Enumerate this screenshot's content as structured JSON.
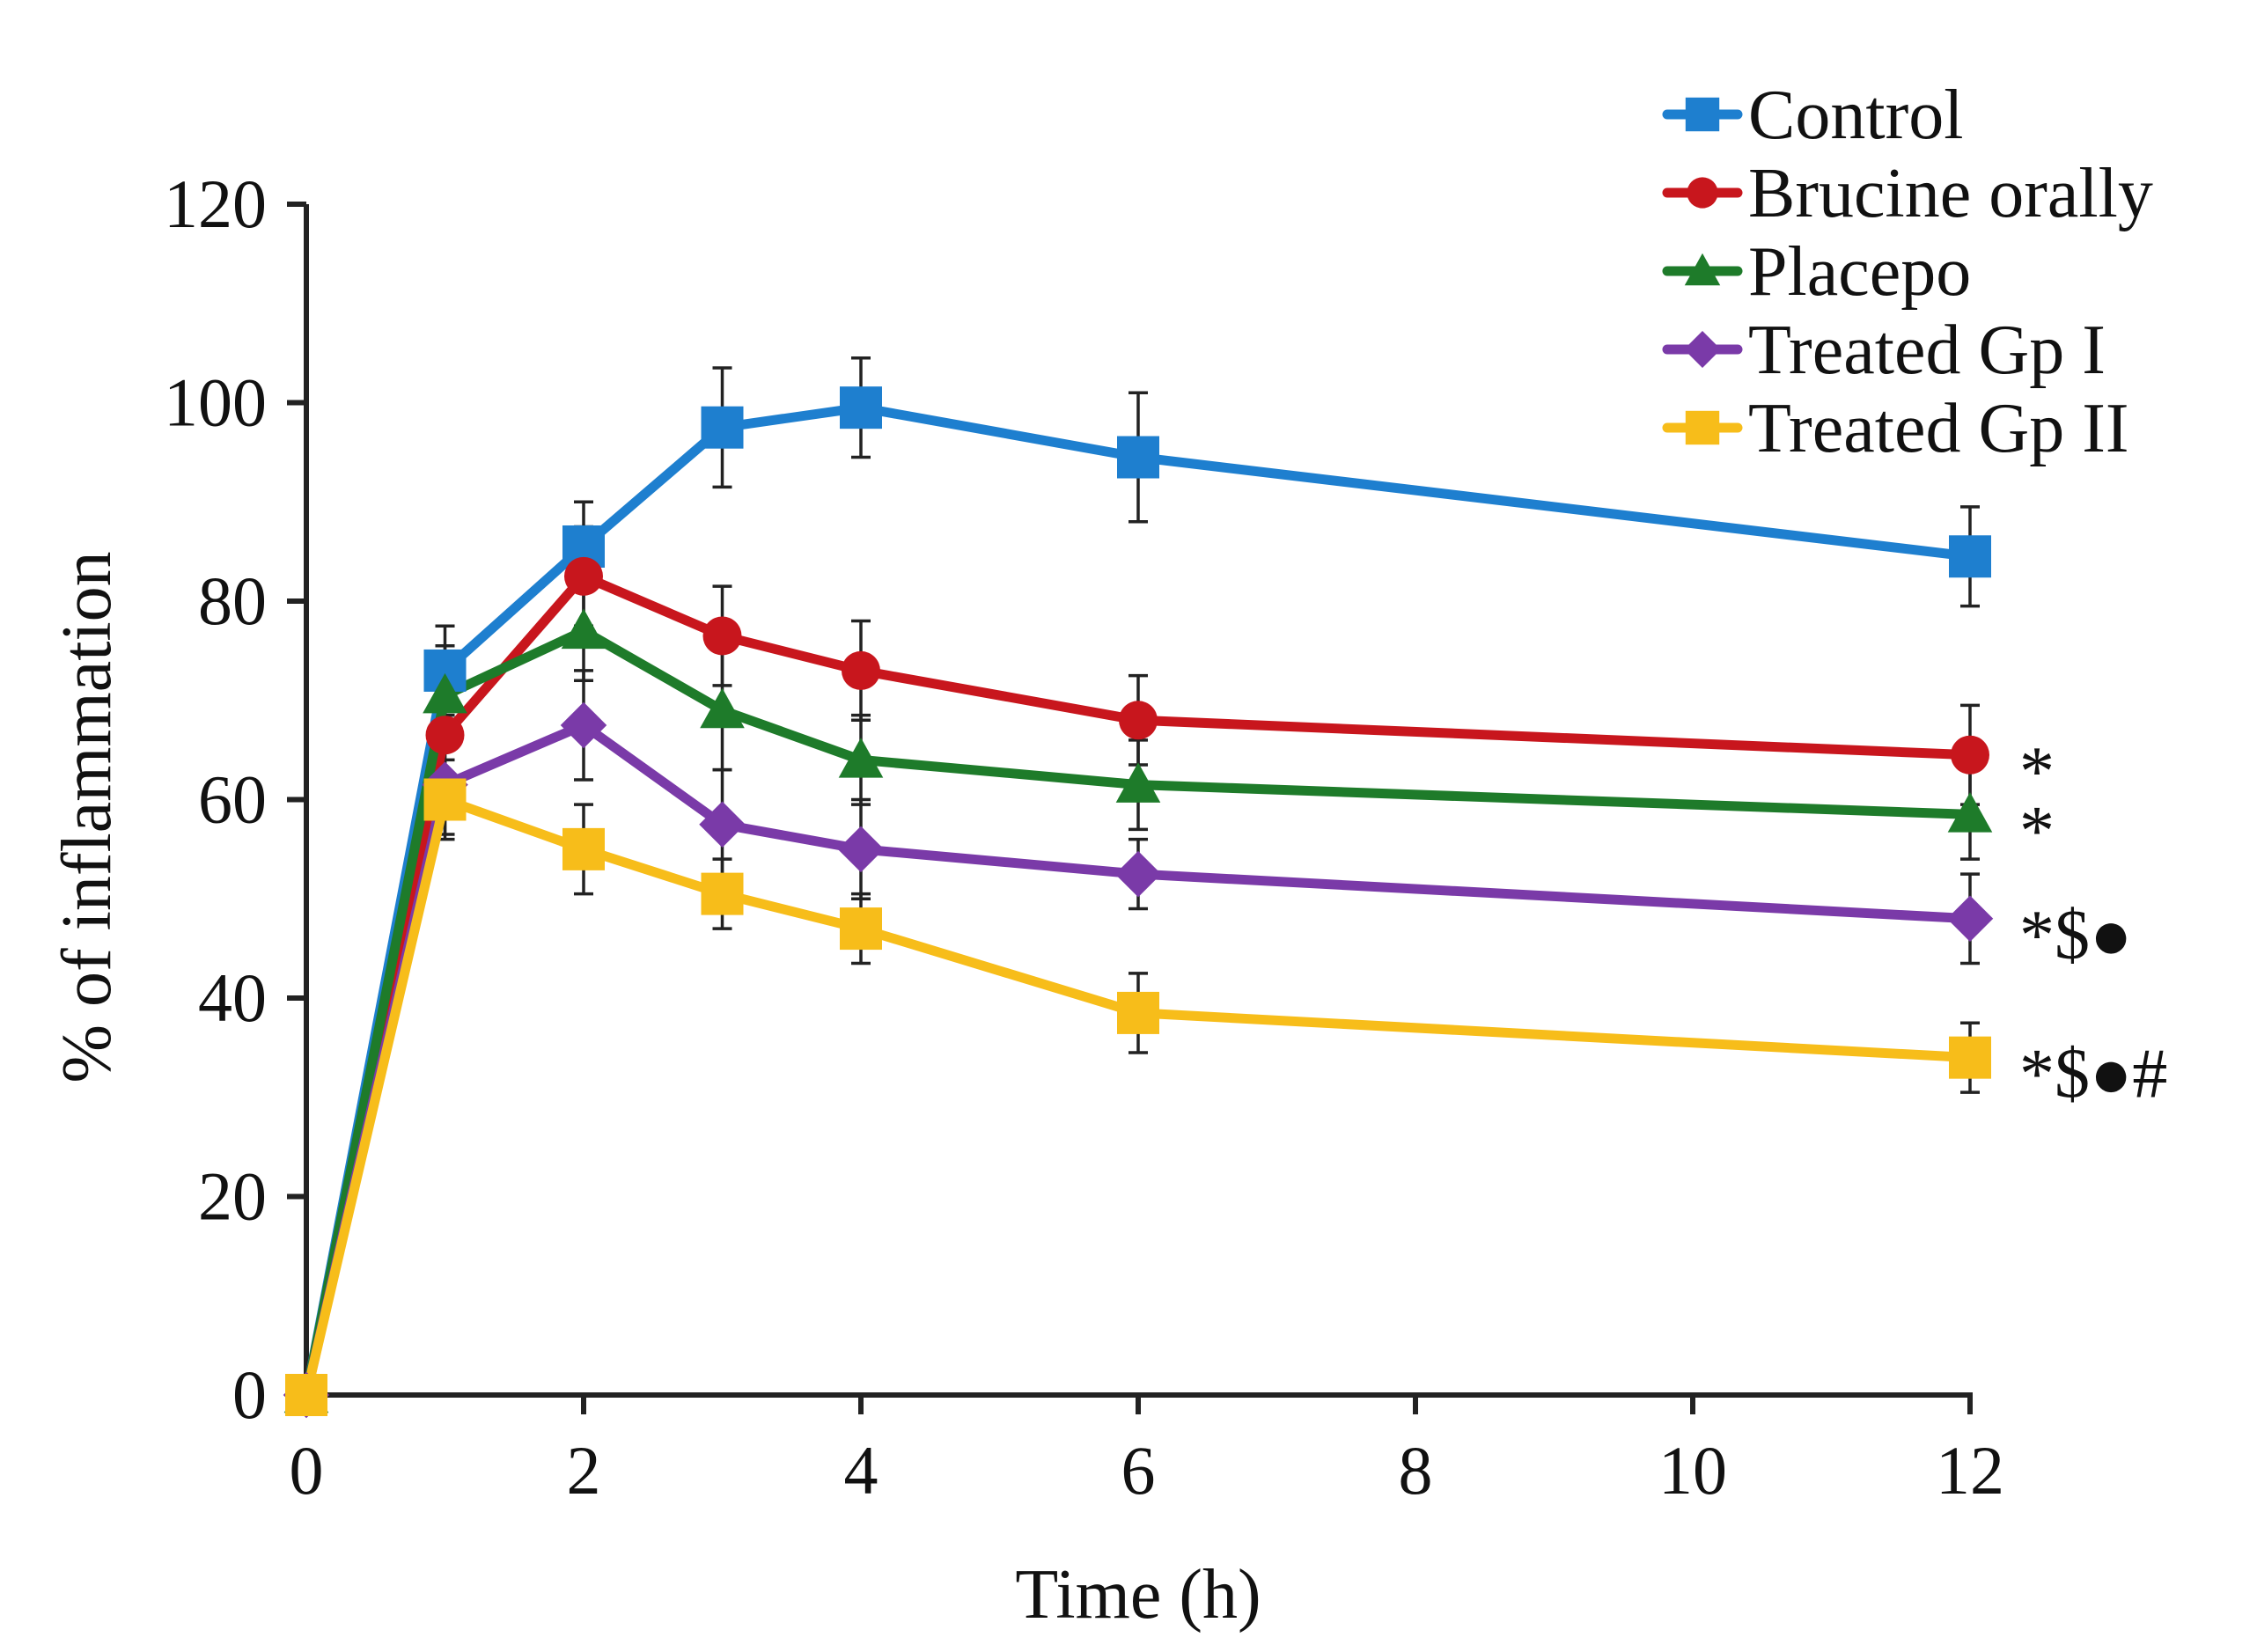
{
  "chart_data": {
    "type": "line",
    "title": "",
    "xlabel": "Time (h)",
    "ylabel": "% of inflammation",
    "xlim": [
      0,
      12
    ],
    "ylim": [
      0,
      120
    ],
    "xticks": [
      0,
      2,
      4,
      6,
      8,
      10,
      12
    ],
    "yticks": [
      0,
      20,
      40,
      60,
      80,
      100,
      120
    ],
    "x": [
      0,
      1,
      2,
      3,
      4,
      6,
      12
    ],
    "legend_position": "top-right",
    "series": [
      {
        "name": "Control",
        "color": "#1e7fcf",
        "marker": "square",
        "values": [
          0,
          73,
          85.5,
          97.5,
          99.5,
          94.5,
          84.5
        ],
        "errors": [
          0,
          4.5,
          4.5,
          6,
          5,
          6.5,
          5
        ],
        "annotation": ""
      },
      {
        "name": "Brucine orally",
        "color": "#c8161d",
        "marker": "circle",
        "values": [
          0,
          66.5,
          82.5,
          76.5,
          73,
          68,
          64.5
        ],
        "errors": [
          0,
          5,
          5,
          5,
          5,
          4.5,
          5
        ],
        "annotation": "*"
      },
      {
        "name": "Placepo",
        "color": "#1e7b2a",
        "marker": "triangle",
        "values": [
          0,
          70.5,
          77,
          69,
          64,
          61.5,
          58.5
        ],
        "errors": [
          0,
          5,
          5,
          6,
          4.5,
          4.5,
          4.5
        ],
        "annotation": "*"
      },
      {
        "name": "Treated Gp I",
        "color": "#7a3aa8",
        "marker": "diamond",
        "values": [
          0,
          61.5,
          67.5,
          57.5,
          55,
          52.5,
          48
        ],
        "errors": [
          0,
          5,
          5.5,
          5.5,
          5,
          3.5,
          4.5
        ],
        "annotation": "*$●"
      },
      {
        "name": "Treated Gp II",
        "color": "#f7bd1a",
        "marker": "square",
        "values": [
          0,
          60,
          55,
          50.5,
          47,
          38.5,
          34
        ],
        "errors": [
          0,
          4,
          4.5,
          3.5,
          3.5,
          4,
          3.5
        ],
        "annotation": "*$●#"
      }
    ]
  }
}
